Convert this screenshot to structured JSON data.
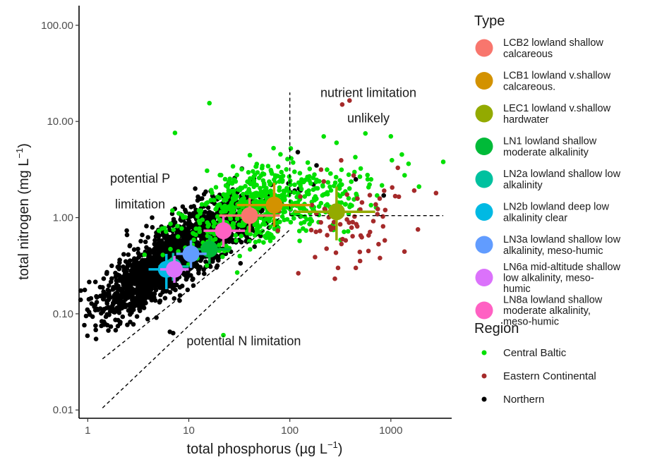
{
  "chart_data": {
    "type": "scatter",
    "xlabel": "total phosphorus (µg L",
    "xlabel_sup": "−1",
    "xlabel_end": ")",
    "ylabel": "total nitrogen (mg L",
    "ylabel_sup": "−1",
    "ylabel_end": ")",
    "x_scale": "log",
    "y_scale": "log",
    "xlim": [
      0.82,
      4000
    ],
    "ylim": [
      0.0082,
      160
    ],
    "x_ticks": [
      1,
      10,
      100,
      1000
    ],
    "x_tick_labels": [
      "1",
      "10",
      "100",
      "1000"
    ],
    "y_ticks": [
      0.01,
      0.1,
      1,
      10,
      100
    ],
    "y_tick_labels": [
      "0.01",
      "0.10",
      "1.00",
      "10.00",
      "100.00"
    ],
    "grid": false,
    "legend_position": "right",
    "annotations": [
      {
        "text": "potential P",
        "x": 3.3,
        "y": 2.3
      },
      {
        "text": "limitation",
        "x": 3.3,
        "y": 1.25
      },
      {
        "text": "nutrient limitation",
        "x": 600,
        "y": 18
      },
      {
        "text": "unlikely",
        "x": 600,
        "y": 9.8
      },
      {
        "text": "potential N limitation",
        "x": 35,
        "y": 0.047
      }
    ],
    "reference_lines": [
      {
        "name": "vertical",
        "x": [
          100,
          100
        ],
        "y": [
          1.05,
          20
        ]
      },
      {
        "name": "horizontal",
        "x": [
          100,
          3300
        ],
        "y": [
          1.05,
          1.05
        ]
      },
      {
        "name": "upper-diagonal",
        "x": [
          1.4,
          80
        ],
        "y": [
          0.034,
          1.0
        ]
      },
      {
        "name": "lower-diagonal",
        "x": [
          1.4,
          100
        ],
        "y": [
          0.0105,
          0.75
        ]
      }
    ],
    "regions": [
      {
        "name": "Central Baltic",
        "color": "#00e000"
      },
      {
        "name": "Eastern Continental",
        "color": "#a52a2a"
      },
      {
        "name": "Northern",
        "color": "#000000"
      }
    ],
    "types": [
      {
        "name_lines": [
          "LCB2 lowland shallow",
          "calcareous"
        ],
        "color": "#f8766d",
        "x": 40,
        "y": 1.05,
        "x_err": [
          20,
          80
        ],
        "y_err": [
          0.7,
          1.6
        ]
      },
      {
        "name_lines": [
          "LCB1 lowland v.shallow",
          "calcareous."
        ],
        "color": "#d39200",
        "x": 70,
        "y": 1.35,
        "x_err": [
          30,
          160
        ],
        "y_err": [
          0.8,
          2.3
        ]
      },
      {
        "name_lines": [
          "LEC1 lowland v.shallow",
          "hardwater"
        ],
        "color": "#93aa00",
        "x": 290,
        "y": 1.15,
        "x_err": [
          110,
          700
        ],
        "y_err": [
          0.58,
          2.1
        ]
      },
      {
        "name_lines": [
          "LN1 lowland shallow",
          "moderate alkalinity"
        ],
        "color": "#00ba38",
        "x": 16,
        "y": 0.47,
        "x_err": [
          10,
          26
        ],
        "y_err": [
          0.33,
          0.66
        ]
      },
      {
        "name_lines": [
          "LN2a lowland shallow low",
          "alkalinity"
        ],
        "color": "#00c19f",
        "x": 7,
        "y": 0.31,
        "x_err": [
          5,
          10
        ],
        "y_err": [
          0.22,
          0.43
        ]
      },
      {
        "name_lines": [
          "LN2b lowland deep low",
          "alkalinity clear"
        ],
        "color": "#00b9e3",
        "x": 6,
        "y": 0.29,
        "x_err": [
          4,
          9
        ],
        "y_err": [
          0.18,
          0.42
        ]
      },
      {
        "name_lines": [
          "LN3a lowland shallow low",
          "alkalinity, meso-humic"
        ],
        "color": "#619cff",
        "x": 10.5,
        "y": 0.42,
        "x_err": [
          7.5,
          15
        ],
        "y_err": [
          0.3,
          0.58
        ]
      },
      {
        "name_lines": [
          "LN6a mid-altitude shallow",
          "low alkalinity, meso-",
          "humic"
        ],
        "color": "#db72fb",
        "x": 7.2,
        "y": 0.29,
        "x_err": [
          5.2,
          10
        ],
        "y_err": [
          0.21,
          0.4
        ]
      },
      {
        "name_lines": [
          "LN8a lowland shallow",
          "moderate alkalinity,",
          "meso-humic"
        ],
        "color": "#ff61c3",
        "x": 22,
        "y": 0.73,
        "x_err": [
          14,
          36
        ],
        "y_err": [
          0.5,
          1.05
        ]
      }
    ],
    "outlier_points": [
      {
        "region": "Central Baltic",
        "x": 16,
        "y": 15.5
      },
      {
        "region": "Central Baltic",
        "x": 7.3,
        "y": 7.6
      },
      {
        "region": "Central Baltic",
        "x": 3300,
        "y": 3.8
      },
      {
        "region": "Central Baltic",
        "x": 1000,
        "y": 7
      },
      {
        "region": "Central Baltic",
        "x": 560,
        "y": 7.5
      },
      {
        "region": "Central Baltic",
        "x": 290,
        "y": 6
      },
      {
        "region": "Central Baltic",
        "x": 1900,
        "y": 2.1
      },
      {
        "region": "Central Baltic",
        "x": 22,
        "y": 0.06
      },
      {
        "region": "Eastern Continental",
        "x": 390,
        "y": 16.5
      },
      {
        "region": "Eastern Continental",
        "x": 330,
        "y": 15
      },
      {
        "region": "Eastern Continental",
        "x": 2800,
        "y": 1.8
      },
      {
        "region": "Eastern Continental",
        "x": 1200,
        "y": 1.65
      },
      {
        "region": "Eastern Continental",
        "x": 780,
        "y": 0.38
      },
      {
        "region": "Eastern Continental",
        "x": 600,
        "y": 0.45
      },
      {
        "region": "Eastern Continental",
        "x": 450,
        "y": 0.3
      },
      {
        "region": "Eastern Continental",
        "x": 300,
        "y": 0.3
      },
      {
        "region": "Eastern Continental",
        "x": 880,
        "y": 1.2
      },
      {
        "region": "Northern",
        "x": 1.2,
        "y": 0.068
      },
      {
        "region": "Northern",
        "x": 1.6,
        "y": 0.067
      },
      {
        "region": "Northern",
        "x": 7,
        "y": 0.063
      },
      {
        "region": "Northern",
        "x": 6.5,
        "y": 0.065
      },
      {
        "region": "Northern",
        "x": 850,
        "y": 1.7
      },
      {
        "region": "Northern",
        "x": 120,
        "y": 4.8
      },
      {
        "region": "Northern",
        "x": 450,
        "y": 2.5
      }
    ],
    "clusters": [
      {
        "region": "Northern",
        "n": 1500,
        "center": [
          5.5,
          0.31
        ],
        "sd_log": [
          0.3,
          0.24
        ],
        "rho": 0.78
      },
      {
        "region": "Northern",
        "n": 500,
        "center": [
          18,
          0.8
        ],
        "sd_log": [
          0.32,
          0.22
        ],
        "rho": 0.55
      },
      {
        "region": "Central Baltic",
        "n": 500,
        "center": [
          45,
          1.3
        ],
        "sd_log": [
          0.36,
          0.22
        ],
        "rho": 0.45
      },
      {
        "region": "Central Baltic",
        "n": 120,
        "center": [
          220,
          1.6
        ],
        "sd_log": [
          0.35,
          0.2
        ],
        "rho": 0.1
      },
      {
        "region": "Eastern Continental",
        "n": 70,
        "center": [
          320,
          1.0
        ],
        "sd_log": [
          0.3,
          0.28
        ],
        "rho": 0.1
      }
    ],
    "legend_type_title": "Type",
    "legend_region_title": "Region"
  }
}
